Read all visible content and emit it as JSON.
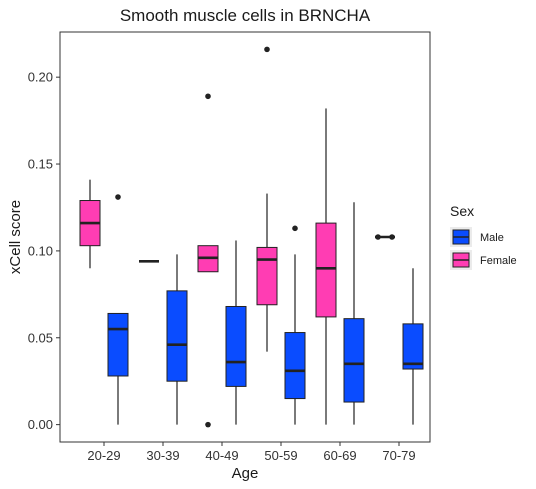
{
  "chart_data": {
    "type": "box",
    "title": "Smooth muscle cells in BRNCHA",
    "xlabel": "Age",
    "ylabel": "xCell score",
    "categories": [
      "20-29",
      "30-39",
      "40-49",
      "50-59",
      "60-69",
      "70-79"
    ],
    "yticks": [
      "0.00",
      "0.05",
      "0.10",
      "0.15",
      "0.20"
    ],
    "ytick_values": [
      0,
      0.05,
      0.1,
      0.15,
      0.2
    ],
    "ylim": [
      -0.01,
      0.226
    ],
    "legend": {
      "title": "Sex",
      "position": "right",
      "items": [
        {
          "label": "Male",
          "color": "#0a4cff"
        },
        {
          "label": "Female",
          "color": "#ff3db3"
        }
      ]
    },
    "series": [
      {
        "name": "Female",
        "color": "#ff3db3",
        "boxes": [
          {
            "category": "20-29",
            "whisker_low": 0.09,
            "q1": 0.103,
            "median": 0.116,
            "q3": 0.129,
            "whisker_high": 0.141,
            "outliers": []
          },
          {
            "category": "30-39",
            "whisker_low": 0.094,
            "q1": 0.094,
            "median": 0.094,
            "q3": 0.094,
            "whisker_high": 0.094,
            "outliers": []
          },
          {
            "category": "40-49",
            "whisker_low": 0.088,
            "q1": 0.088,
            "median": 0.096,
            "q3": 0.103,
            "whisker_high": 0.103,
            "outliers": [
              0.189,
              0.0
            ]
          },
          {
            "category": "50-59",
            "whisker_low": 0.042,
            "q1": 0.069,
            "median": 0.095,
            "q3": 0.102,
            "whisker_high": 0.133,
            "outliers": [
              0.216
            ]
          },
          {
            "category": "60-69",
            "whisker_low": 0.0,
            "q1": 0.062,
            "median": 0.09,
            "q3": 0.116,
            "whisker_high": 0.182,
            "outliers": []
          },
          {
            "category": "70-79",
            "whisker_low": 0.108,
            "q1": 0.108,
            "median": 0.108,
            "q3": 0.108,
            "whisker_high": 0.108,
            "outliers": [
              0.108,
              0.108
            ]
          }
        ]
      },
      {
        "name": "Male",
        "color": "#0a4cff",
        "boxes": [
          {
            "category": "20-29",
            "whisker_low": 0.0,
            "q1": 0.028,
            "median": 0.055,
            "q3": 0.064,
            "whisker_high": 0.064,
            "outliers": [
              0.131
            ]
          },
          {
            "category": "30-39",
            "whisker_low": 0.0,
            "q1": 0.025,
            "median": 0.046,
            "q3": 0.077,
            "whisker_high": 0.098,
            "outliers": []
          },
          {
            "category": "40-49",
            "whisker_low": 0.0,
            "q1": 0.022,
            "median": 0.036,
            "q3": 0.068,
            "whisker_high": 0.106,
            "outliers": []
          },
          {
            "category": "50-59",
            "whisker_low": 0.0,
            "q1": 0.015,
            "median": 0.031,
            "q3": 0.053,
            "whisker_high": 0.098,
            "outliers": [
              0.113
            ]
          },
          {
            "category": "60-69",
            "whisker_low": 0.0,
            "q1": 0.013,
            "median": 0.035,
            "q3": 0.061,
            "whisker_high": 0.128,
            "outliers": []
          },
          {
            "category": "70-79",
            "whisker_low": 0.0,
            "q1": 0.032,
            "median": 0.035,
            "q3": 0.058,
            "whisker_high": 0.09,
            "outliers": []
          }
        ]
      }
    ]
  }
}
